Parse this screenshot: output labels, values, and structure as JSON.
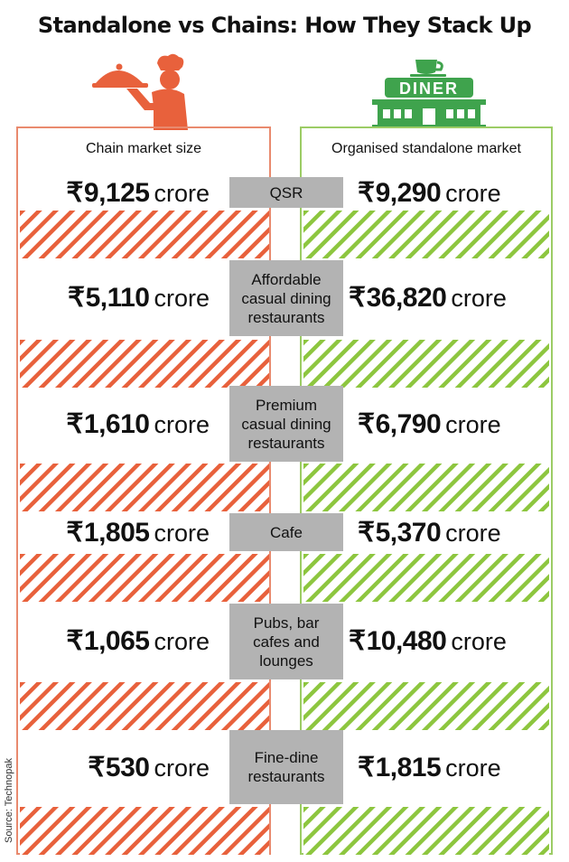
{
  "title": "Standalone vs Chains: How They Stack Up",
  "columns": {
    "left": {
      "header": "Chain market size"
    },
    "right": {
      "header": "Organised standalone market"
    }
  },
  "icons": {
    "left": "chef-serving-cloche-icon",
    "right": "diner-building-icon",
    "diner_sign": "DINER"
  },
  "currency_symbol": "₹",
  "unit": "crore",
  "colors": {
    "chain": "#e8613c",
    "standalone": "#8dc63f",
    "label_bg": "#b3b3b3",
    "chain_border": "#e98a6e",
    "standalone_border": "#9ccc65"
  },
  "rows": [
    {
      "label": "QSR",
      "chain_text": "9,125",
      "standalone_text": "9,290"
    },
    {
      "label": "Affordable casual dining restaurants",
      "chain_text": "5,110",
      "standalone_text": "36,820"
    },
    {
      "label": "Premium casual dining restaurants",
      "chain_text": "1,610",
      "standalone_text": "6,790"
    },
    {
      "label": "Cafe",
      "chain_text": "1,805",
      "standalone_text": "5,370"
    },
    {
      "label": "Pubs, bar cafes and lounges",
      "chain_text": "1,065",
      "standalone_text": "10,480"
    },
    {
      "label": "Fine-dine restaurants",
      "chain_text": "530",
      "standalone_text": "1,815"
    }
  ],
  "source": "Source: Technopak",
  "chart_data": {
    "type": "table",
    "title": "Standalone vs Chains: How They Stack Up",
    "columns": [
      "Chain market size",
      "Organised standalone market"
    ],
    "unit": "crore",
    "categories": [
      "QSR",
      "Affordable casual dining restaurants",
      "Premium casual dining restaurants",
      "Cafe",
      "Pubs, bar cafes and lounges",
      "Fine-dine restaurants"
    ],
    "series": [
      {
        "name": "Chain market size",
        "values": [
          9125,
          5110,
          1610,
          1805,
          1065,
          530
        ]
      },
      {
        "name": "Organised standalone market",
        "values": [
          9290,
          36820,
          6790,
          5370,
          10480,
          1815
        ]
      }
    ]
  }
}
